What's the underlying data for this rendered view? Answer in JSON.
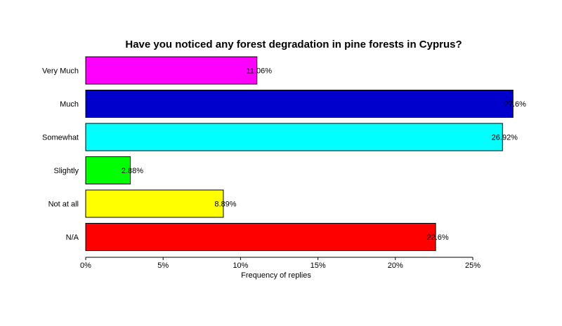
{
  "chart_data": {
    "type": "bar",
    "orientation": "horizontal",
    "title": "Have you noticed any forest degradation in pine forests in Cyprus?",
    "xlabel": "Frequency of replies",
    "ylabel": "",
    "categories": [
      "Very Much",
      "Much",
      "Somewhat",
      "Slightly",
      "Not at all",
      "N/A"
    ],
    "values": [
      11.06,
      27.6,
      26.92,
      2.88,
      8.89,
      22.6
    ],
    "data_labels": [
      "11.06%",
      "27.6%",
      "26.92%",
      "2.88%",
      "8.89%",
      "22.6%"
    ],
    "colors": [
      "#ff00ff",
      "#0000cc",
      "#00ffff",
      "#00ff00",
      "#ffff00",
      "#ff0000"
    ],
    "xlim": [
      0,
      25
    ],
    "xticks": [
      0,
      5,
      10,
      15,
      20,
      25
    ],
    "xtick_labels": [
      "0%",
      "5%",
      "10%",
      "15%",
      "20%",
      "25%"
    ],
    "grid": false,
    "legend": "none"
  }
}
